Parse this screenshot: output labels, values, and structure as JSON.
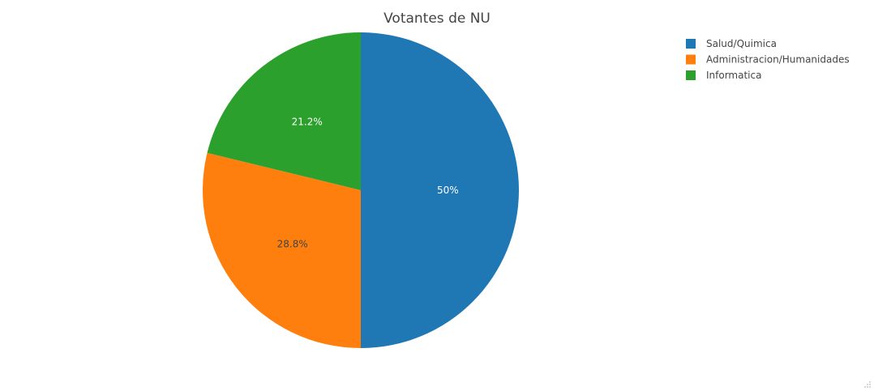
{
  "chart_data": {
    "type": "pie",
    "title": "Votantes de NU",
    "categories": [
      "Salud/Quimica",
      "Administracion/Humanidades",
      "Informatica"
    ],
    "values": [
      50,
      28.8,
      21.2
    ],
    "labels": [
      "50%",
      "28.8%",
      "21.2%"
    ],
    "colors": [
      "#1f77b4",
      "#ff7f0e",
      "#2ca02c"
    ],
    "label_colors": [
      "#ffffff",
      "#444444",
      "#ffffff"
    ],
    "direction": "clockwise",
    "start_angle_deg": 90,
    "legend_position": "top-right"
  }
}
